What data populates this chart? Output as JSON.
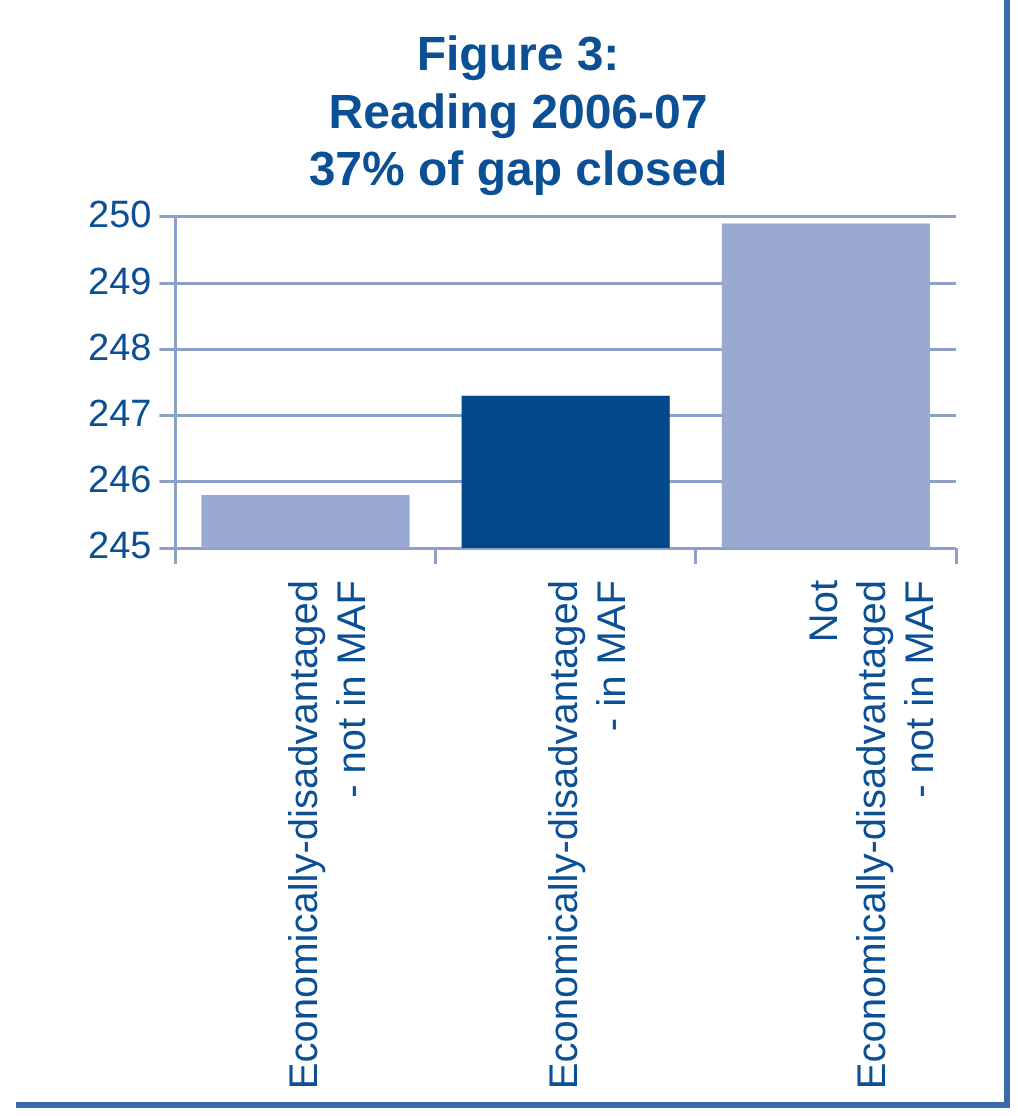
{
  "chart_data": {
    "type": "bar",
    "title": "Figure 3:\nReading 2006-07\n37% of gap closed",
    "categories": [
      "Economically-disadvantaged - not in MAF",
      "Economically-disadvantaged - in MAF",
      "Not Economically-disadvantaged - not in MAF"
    ],
    "values": [
      245.8,
      247.3,
      249.9
    ],
    "colors": [
      "#9aa9cf",
      "#02498c",
      "#9aa9cf"
    ],
    "ylim": [
      245,
      250
    ],
    "yticks": [
      245,
      246,
      247,
      248,
      249,
      250
    ],
    "grid": "y",
    "legend": false
  }
}
